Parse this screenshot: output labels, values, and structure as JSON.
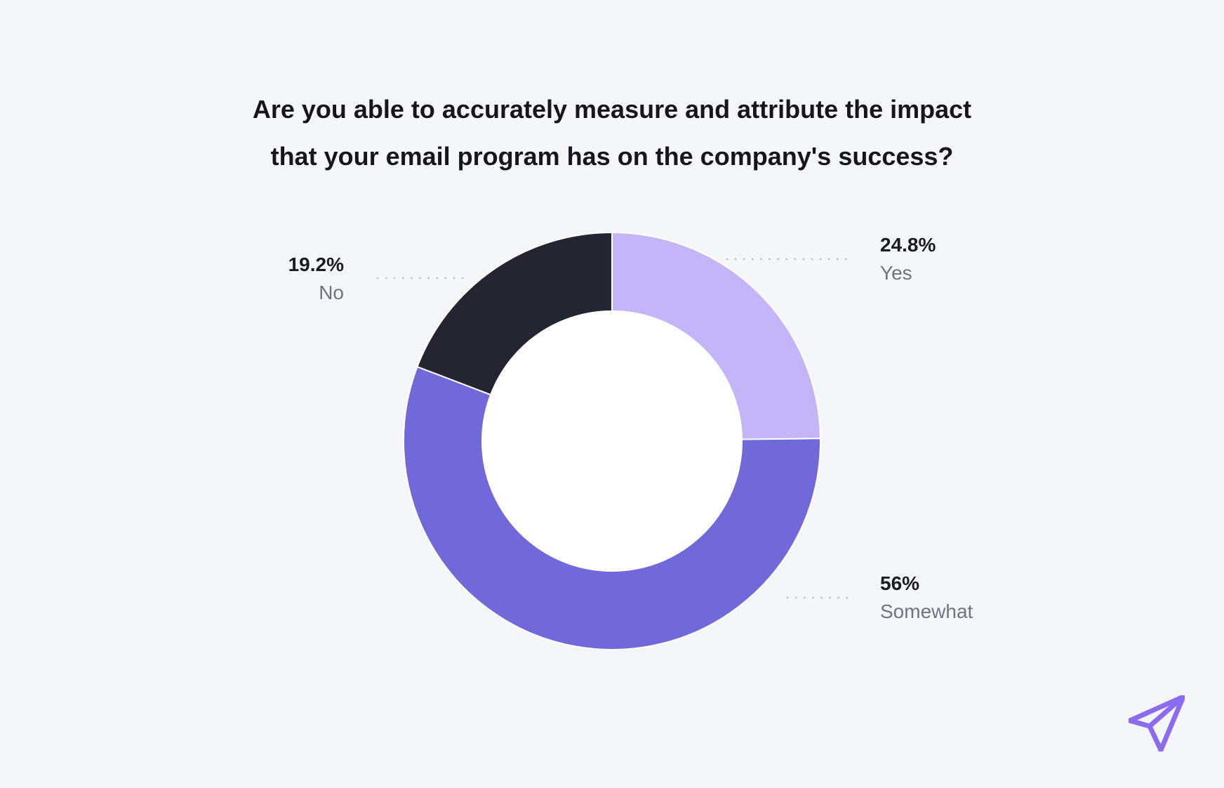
{
  "chart_data": {
    "type": "pie",
    "title_lines": [
      "Are you able to accurately measure and attribute the impact",
      "that your email program has on the company's success?"
    ],
    "slices": [
      {
        "label": "Yes",
        "value": 24.8,
        "value_label": "24.8%",
        "color": "#c4b5f8"
      },
      {
        "label": "Somewhat",
        "value": 56,
        "value_label": "56%",
        "color": "#7168d9"
      },
      {
        "label": "No",
        "value": 19.2,
        "value_label": "19.2%",
        "color": "#232533"
      }
    ],
    "donut": true,
    "start": "12 o'clock",
    "direction": "clockwise",
    "legend": "none",
    "hole_color": "#ffffff",
    "leader_line_color": "#c2c7cf"
  },
  "colors": {
    "background": "#f4f7fa",
    "brand_accent": "#8b6cf0"
  },
  "icons": {
    "logo": "paper-plane-logo-icon"
  }
}
